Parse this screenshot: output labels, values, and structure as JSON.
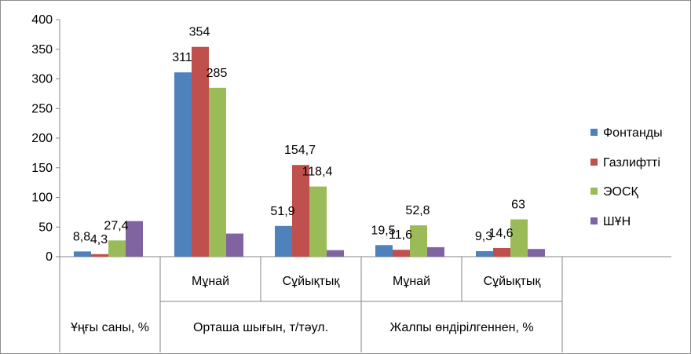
{
  "chart_data": {
    "type": "bar",
    "title": "",
    "ylim": [
      0,
      400
    ],
    "yticks": [
      0,
      50,
      100,
      150,
      200,
      250,
      300,
      350,
      400
    ],
    "grid": false,
    "legend_position": "right",
    "categories": [
      {
        "label": "",
        "values": [
          8.8,
          4.3,
          27.4,
          60
        ],
        "labels": [
          "8,8",
          "4,3",
          "27,4",
          ""
        ]
      },
      {
        "label": "Мұнай",
        "values": [
          311,
          354,
          285,
          39
        ],
        "labels": [
          "311",
          "354",
          "285",
          ""
        ]
      },
      {
        "label": "Сұйықтық",
        "values": [
          51.9,
          154.7,
          118.4,
          11
        ],
        "labels": [
          "51,9",
          "154,7",
          "118,4",
          ""
        ]
      },
      {
        "label": "Мұнай",
        "values": [
          19.5,
          11.6,
          52.8,
          16
        ],
        "labels": [
          "19,5",
          "11,6",
          "52,8",
          ""
        ]
      },
      {
        "label": "Сұйықтық",
        "values": [
          9.3,
          14.6,
          63,
          13
        ],
        "labels": [
          "9,3",
          "14,6",
          "63",
          ""
        ]
      }
    ],
    "groups": [
      {
        "label": "Ұңғы саны, %"
      },
      {
        "label": "Орташа шығын, т/тәул."
      },
      {
        "label": "Жалпы өндірілгеннен, %"
      }
    ],
    "series": [
      {
        "name": "Фонтанды",
        "color": "#4f81bd"
      },
      {
        "name": "Газлифтті",
        "color": "#c0504d"
      },
      {
        "name": "ЭОСҚ",
        "color": "#9bbb59"
      },
      {
        "name": "ШҰН",
        "color": "#8064a2"
      }
    ]
  }
}
